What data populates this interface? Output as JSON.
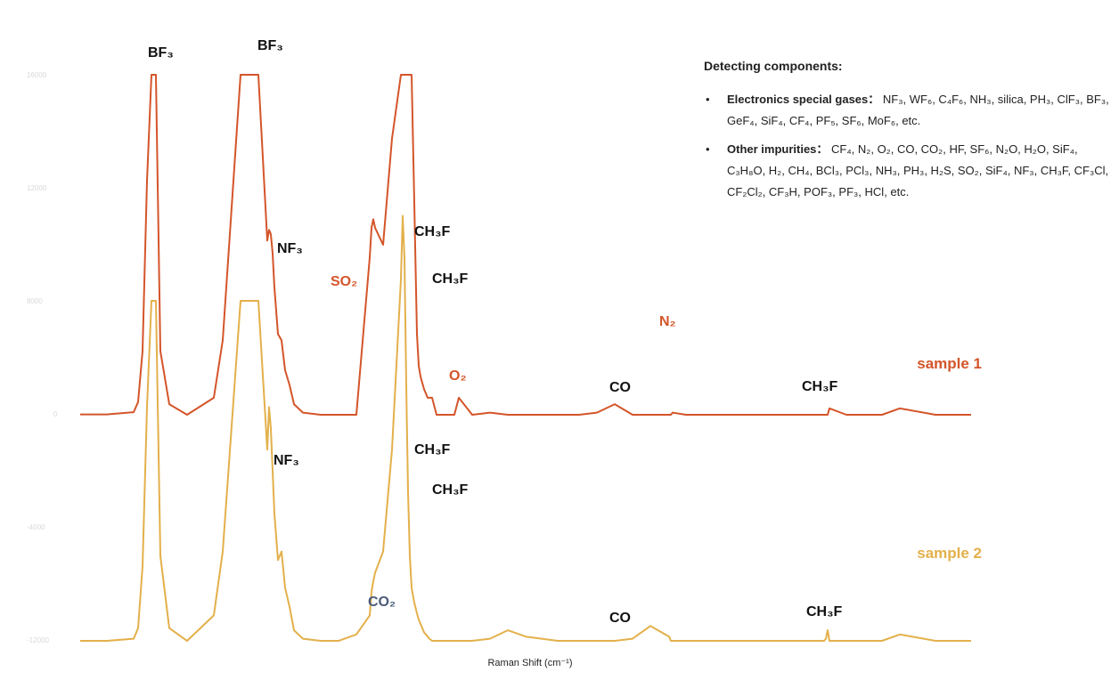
{
  "chart_data": {
    "type": "line",
    "xlabel": "Raman Shift (cm⁻¹)",
    "ylabel": "",
    "y_ticks": [
      "16000",
      "12000",
      "8000",
      "0",
      "-4000",
      "-12000"
    ],
    "grid": false,
    "x": [
      0,
      30,
      60,
      65,
      70,
      75,
      80,
      85,
      90,
      100,
      120,
      150,
      160,
      180,
      200,
      210,
      212,
      214,
      216,
      218,
      222,
      226,
      230,
      235,
      240,
      250,
      270,
      290,
      310,
      325,
      327,
      329,
      331,
      340,
      350,
      360,
      362,
      364,
      366,
      368,
      370,
      372,
      375,
      378,
      380,
      382,
      384,
      386,
      388,
      390,
      392,
      395,
      400,
      405,
      412,
      416,
      418,
      420,
      425,
      440,
      460,
      480,
      500,
      536,
      538,
      540,
      542,
      560,
      580,
      600,
      620,
      640,
      661,
      663,
      665,
      680,
      720,
      760,
      800,
      835,
      837,
      839,
      841,
      860,
      880,
      900,
      920,
      960,
      1000
    ],
    "series": [
      {
        "name": "sample 1",
        "color": "#d4552a",
        "values": [
          15,
          15,
          120,
          600,
          3000,
          11000,
          16000,
          16000,
          3000,
          500,
          0,
          800,
          3500,
          16000,
          16000,
          8200,
          8700,
          8500,
          7600,
          6000,
          3800,
          3500,
          2100,
          1400,
          500,
          100,
          0,
          0,
          0,
          7400,
          8800,
          9200,
          8800,
          8000,
          13000,
          22000,
          31000,
          40000,
          49000,
          45000,
          35000,
          23000,
          10000,
          3800,
          2300,
          1800,
          1500,
          1200,
          1000,
          800,
          800,
          800,
          0,
          0,
          0,
          0,
          0,
          0,
          800,
          0,
          100,
          0,
          0,
          0,
          0,
          0,
          0,
          0,
          100,
          500,
          0,
          0,
          0,
          0,
          100,
          0,
          0,
          0,
          0,
          0,
          0,
          0,
          300,
          0,
          0,
          0,
          300,
          0,
          0
        ]
      },
      {
        "name": "sample 2",
        "color": "#e3b04b",
        "values": [
          0,
          0,
          100,
          600,
          3500,
          11000,
          16000,
          16000,
          4000,
          600,
          0,
          1200,
          4200,
          16000,
          16000,
          9000,
          11000,
          10000,
          8000,
          6000,
          3800,
          4200,
          2500,
          1600,
          500,
          100,
          0,
          0,
          300,
          1200,
          2300,
          2800,
          3200,
          4200,
          9000,
          17000,
          20000,
          18000,
          12000,
          7000,
          4000,
          2500,
          1800,
          1300,
          1000,
          800,
          600,
          400,
          300,
          200,
          100,
          0,
          0,
          0,
          0,
          0,
          0,
          0,
          0,
          0,
          100,
          500,
          200,
          0,
          0,
          0,
          0,
          0,
          0,
          0,
          100,
          700,
          200,
          0,
          0,
          0,
          0,
          0,
          0,
          0,
          100,
          500,
          0,
          0,
          0,
          0,
          300,
          0,
          0
        ]
      }
    ],
    "annotations": [
      {
        "text": "BF₃",
        "color": "#111111"
      },
      {
        "text": "BF₃",
        "color": "#111111"
      },
      {
        "text": "NF₃",
        "color": "#111111"
      },
      {
        "text": "SO₂",
        "color": "#d4552a"
      },
      {
        "text": "CH₃F",
        "color": "#111111"
      },
      {
        "text": "CH₃F",
        "color": "#111111"
      },
      {
        "text": "O₂",
        "color": "#d4552a"
      },
      {
        "text": "N₂",
        "color": "#d4552a"
      },
      {
        "text": "CO",
        "color": "#111111"
      },
      {
        "text": "CH₃F",
        "color": "#111111"
      },
      {
        "text": "NF₃",
        "color": "#111111"
      },
      {
        "text": "CH₃F",
        "color": "#111111"
      },
      {
        "text": "CH₃F",
        "color": "#111111"
      },
      {
        "text": "CO₂",
        "color": "#4a5a78"
      },
      {
        "text": "CO",
        "color": "#111111"
      },
      {
        "text": "CH₃F",
        "color": "#111111"
      }
    ],
    "sample_labels": [
      {
        "text": "sample 1",
        "color": "#d4552a"
      },
      {
        "text": "sample 2",
        "color": "#e3b04b"
      }
    ]
  },
  "info": {
    "title": "Detecting components:",
    "bullet": "•",
    "items": [
      {
        "label": "Electronics special gases：",
        "text": "NF₃, WF₆, C₄F₆, NH₃, silica, PH₃, ClF₃, BF₃, GeF₄, SiF₄, CF₄, PF₅, SF₆, MoF₆, etc."
      },
      {
        "label": "Other impurities：",
        "text": "CF₄, N₂, O₂, CO, CO₂, HF, SF₆, N₂O, H₂O, SiF₄, C₃H₈O, H₂, CH₄, BCl₃, PCl₃, NH₃, PH₃, H₂S, SO₂, SiF₄, NF₃, CH₃F, CF₃Cl, CF₂Cl₂, CF₃H, POF₃, PF₃, HCl, etc."
      }
    ]
  }
}
